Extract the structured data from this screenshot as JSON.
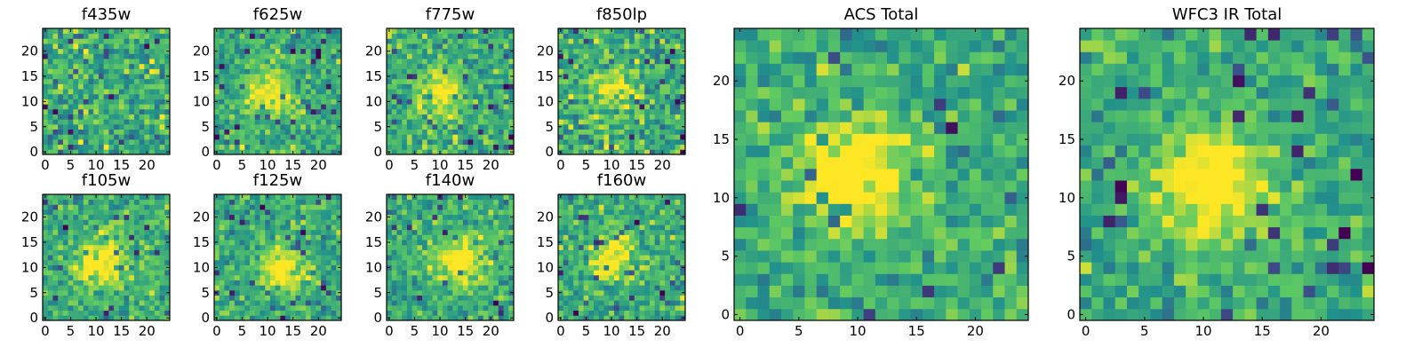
{
  "figure": {
    "colormap": [
      "#440154",
      "#3b528b",
      "#21918c",
      "#5ec962",
      "#fde725"
    ]
  },
  "chart_data": [
    {
      "type": "heatmap",
      "title": "f435w",
      "grid_size": 25,
      "xlim": [
        -0.5,
        24.5
      ],
      "ylim": [
        -0.5,
        24.5
      ],
      "xticks": [
        0,
        5,
        10,
        15,
        20
      ],
      "yticks": [
        0,
        5,
        10,
        15,
        20
      ],
      "source_peak": [
        12,
        12
      ],
      "peak_strength": 0.0,
      "noise": 0.75,
      "seed": 101
    },
    {
      "type": "heatmap",
      "title": "f625w",
      "grid_size": 25,
      "xlim": [
        -0.5,
        24.5
      ],
      "ylim": [
        -0.5,
        24.5
      ],
      "xticks": [
        0,
        5,
        10,
        15,
        20
      ],
      "yticks": [
        0,
        5,
        10,
        15,
        20
      ],
      "source_peak": [
        10,
        12
      ],
      "peak_strength": 0.45,
      "noise": 0.6,
      "seed": 202
    },
    {
      "type": "heatmap",
      "title": "f775w",
      "grid_size": 25,
      "xlim": [
        -0.5,
        24.5
      ],
      "ylim": [
        -0.5,
        24.5
      ],
      "xticks": [
        0,
        5,
        10,
        15,
        20
      ],
      "yticks": [
        0,
        5,
        10,
        15,
        20
      ],
      "source_peak": [
        10,
        12
      ],
      "peak_strength": 0.4,
      "noise": 0.6,
      "seed": 303
    },
    {
      "type": "heatmap",
      "title": "f850lp",
      "grid_size": 25,
      "xlim": [
        -0.5,
        24.5
      ],
      "ylim": [
        -0.5,
        24.5
      ],
      "xticks": [
        0,
        5,
        10,
        15,
        20
      ],
      "yticks": [
        0,
        5,
        10,
        15,
        20
      ],
      "source_peak": [
        10,
        12
      ],
      "peak_strength": 0.3,
      "noise": 0.7,
      "seed": 404
    },
    {
      "type": "heatmap",
      "title": "f105w",
      "grid_size": 25,
      "xlim": [
        -0.5,
        24.5
      ],
      "ylim": [
        -0.5,
        24.5
      ],
      "xticks": [
        0,
        5,
        10,
        15,
        20
      ],
      "yticks": [
        0,
        5,
        10,
        15,
        20
      ],
      "source_peak": [
        11,
        11
      ],
      "peak_strength": 0.5,
      "noise": 0.55,
      "seed": 505
    },
    {
      "type": "heatmap",
      "title": "f125w",
      "grid_size": 25,
      "xlim": [
        -0.5,
        24.5
      ],
      "ylim": [
        -0.5,
        24.5
      ],
      "xticks": [
        0,
        5,
        10,
        15,
        20
      ],
      "yticks": [
        0,
        5,
        10,
        15,
        20
      ],
      "source_peak": [
        13,
        10
      ],
      "peak_strength": 0.45,
      "noise": 0.55,
      "seed": 606
    },
    {
      "type": "heatmap",
      "title": "f140w",
      "grid_size": 25,
      "xlim": [
        -0.5,
        24.5
      ],
      "ylim": [
        -0.5,
        24.5
      ],
      "xticks": [
        0,
        5,
        10,
        15,
        20
      ],
      "yticks": [
        0,
        5,
        10,
        15,
        20
      ],
      "source_peak": [
        14,
        11
      ],
      "peak_strength": 0.5,
      "noise": 0.55,
      "seed": 707
    },
    {
      "type": "heatmap",
      "title": "f160w",
      "grid_size": 25,
      "xlim": [
        -0.5,
        24.5
      ],
      "ylim": [
        -0.5,
        24.5
      ],
      "xticks": [
        0,
        5,
        10,
        15,
        20
      ],
      "yticks": [
        0,
        5,
        10,
        15,
        20
      ],
      "source_peak": [
        10,
        12
      ],
      "peak_strength": 0.45,
      "noise": 0.6,
      "seed": 808
    },
    {
      "type": "heatmap",
      "title": "ACS Total",
      "grid_size": 25,
      "xlim": [
        -0.5,
        24.5
      ],
      "ylim": [
        -0.5,
        24.5
      ],
      "xticks": [
        0,
        5,
        10,
        15,
        20
      ],
      "yticks": [
        0,
        5,
        10,
        15,
        20
      ],
      "source_peak": [
        10,
        12
      ],
      "peak_strength": 0.55,
      "noise": 0.55,
      "seed": 909
    },
    {
      "type": "heatmap",
      "title": "WFC3 IR Total",
      "grid_size": 25,
      "xlim": [
        -0.5,
        24.5
      ],
      "ylim": [
        -0.5,
        24.5
      ],
      "xticks": [
        0,
        5,
        10,
        15,
        20
      ],
      "yticks": [
        0,
        5,
        10,
        15,
        20
      ],
      "source_peak": [
        11,
        11
      ],
      "peak_strength": 0.55,
      "noise": 0.5,
      "seed": 1010
    }
  ]
}
